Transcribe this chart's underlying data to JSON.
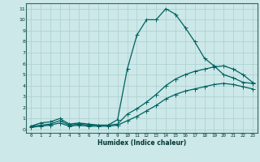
{
  "xlabel": "Humidex (Indice chaleur)",
  "bg_color": "#cce8e8",
  "grid_color": "#aacfcf",
  "line_color": "#006060",
  "xlim": [
    -0.5,
    23.5
  ],
  "ylim": [
    -0.3,
    11.5
  ],
  "xticks": [
    0,
    1,
    2,
    3,
    4,
    5,
    6,
    7,
    8,
    9,
    10,
    11,
    12,
    13,
    14,
    15,
    16,
    17,
    18,
    19,
    20,
    21,
    22,
    23
  ],
  "yticks": [
    0,
    1,
    2,
    3,
    4,
    5,
    6,
    7,
    8,
    9,
    10,
    11
  ],
  "series1_x": [
    0,
    1,
    2,
    3,
    4,
    5,
    6,
    7,
    8,
    9,
    10,
    11,
    12,
    13,
    14,
    15,
    16,
    17,
    18,
    19,
    20,
    21,
    22,
    23
  ],
  "series1_y": [
    0.3,
    0.6,
    0.7,
    1.0,
    0.5,
    0.6,
    0.5,
    0.4,
    0.4,
    0.9,
    5.5,
    8.6,
    10.0,
    10.0,
    11.0,
    10.5,
    9.3,
    8.0,
    6.5,
    5.8,
    5.0,
    4.7,
    4.3,
    4.2
  ],
  "series2_x": [
    0,
    1,
    2,
    3,
    4,
    5,
    6,
    7,
    8,
    9,
    10,
    11,
    12,
    13,
    14,
    15,
    16,
    17,
    18,
    19,
    20,
    21,
    22,
    23
  ],
  "series2_y": [
    0.3,
    0.4,
    0.5,
    0.8,
    0.4,
    0.5,
    0.4,
    0.4,
    0.4,
    0.5,
    1.4,
    1.9,
    2.5,
    3.2,
    4.0,
    4.6,
    5.0,
    5.3,
    5.5,
    5.7,
    5.8,
    5.5,
    5.0,
    4.3
  ],
  "series3_x": [
    0,
    1,
    2,
    3,
    4,
    5,
    6,
    7,
    8,
    9,
    10,
    11,
    12,
    13,
    14,
    15,
    16,
    17,
    18,
    19,
    20,
    21,
    22,
    23
  ],
  "series3_y": [
    0.2,
    0.3,
    0.4,
    0.6,
    0.3,
    0.4,
    0.3,
    0.3,
    0.3,
    0.4,
    0.8,
    1.2,
    1.7,
    2.2,
    2.8,
    3.2,
    3.5,
    3.7,
    3.9,
    4.1,
    4.2,
    4.1,
    3.9,
    3.7
  ]
}
